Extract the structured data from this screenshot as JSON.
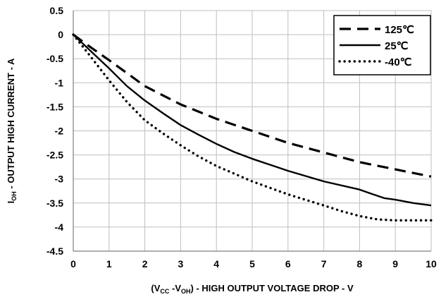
{
  "chart_data": {
    "type": "line",
    "title": "",
    "xlabel": {
      "parts": [
        {
          "text": "(V",
          "sub": false
        },
        {
          "text": "CC",
          "sub": true
        },
        {
          "text": " -V",
          "sub": false
        },
        {
          "text": "OH",
          "sub": true
        },
        {
          "text": ") - HIGH OUTPUT VOLTAGE DROP - V",
          "sub": false
        }
      ]
    },
    "ylabel": {
      "parts": [
        {
          "text": "I",
          "sub": false
        },
        {
          "text": "OH",
          "sub": true
        },
        {
          "text": " - OUTPUT HIGH CURRENT - A",
          "sub": false
        }
      ]
    },
    "xlim": [
      0,
      10
    ],
    "ylim": [
      -4.5,
      0.5
    ],
    "x_ticks": [
      0,
      1,
      2,
      3,
      4,
      5,
      6,
      7,
      8,
      9,
      10
    ],
    "x_tick_labels": [
      "0",
      "1",
      "2",
      "3",
      "4",
      "5",
      "6",
      "7",
      "8",
      "9",
      "10"
    ],
    "y_ticks": [
      0.5,
      0,
      -0.5,
      -1,
      -1.5,
      -2,
      -2.5,
      -3,
      -3.5,
      -4,
      -4.5
    ],
    "y_tick_labels": [
      "0.5",
      "0",
      "-0.5",
      "-1",
      "-1.5",
      "-2",
      "-2.5",
      "-3",
      "-3.5",
      "-4",
      "-4.5"
    ],
    "grid": true,
    "legend_position": "top-right",
    "series": [
      {
        "name": "125℃",
        "line_style": "dashed",
        "color": "#000000",
        "x": [
          0,
          0.5,
          1,
          1.5,
          2,
          3,
          4,
          5,
          6,
          7,
          8,
          9,
          10
        ],
        "y": [
          0,
          -0.27,
          -0.53,
          -0.8,
          -1.07,
          -1.45,
          -1.75,
          -2.0,
          -2.25,
          -2.45,
          -2.65,
          -2.8,
          -2.95
        ]
      },
      {
        "name": "25℃",
        "line_style": "solid",
        "color": "#000000",
        "x": [
          0,
          0.5,
          1,
          1.5,
          2,
          2.5,
          3,
          3.5,
          4,
          4.5,
          5,
          6,
          7,
          8,
          8.3,
          8.7,
          9,
          9.5,
          10
        ],
        "y": [
          0,
          -0.35,
          -0.7,
          -1.07,
          -1.37,
          -1.63,
          -1.88,
          -2.08,
          -2.27,
          -2.44,
          -2.58,
          -2.83,
          -3.05,
          -3.22,
          -3.3,
          -3.4,
          -3.43,
          -3.5,
          -3.55
        ]
      },
      {
        "name": "-40℃",
        "line_style": "dotted",
        "color": "#000000",
        "x": [
          0,
          0.5,
          1,
          1.5,
          2,
          2.5,
          3,
          3.5,
          4,
          5,
          6,
          7,
          7.5,
          8,
          8.5,
          9,
          10
        ],
        "y": [
          0,
          -0.47,
          -0.95,
          -1.4,
          -1.78,
          -2.05,
          -2.3,
          -2.53,
          -2.73,
          -3.05,
          -3.32,
          -3.55,
          -3.67,
          -3.77,
          -3.84,
          -3.86,
          -3.86
        ]
      }
    ]
  }
}
